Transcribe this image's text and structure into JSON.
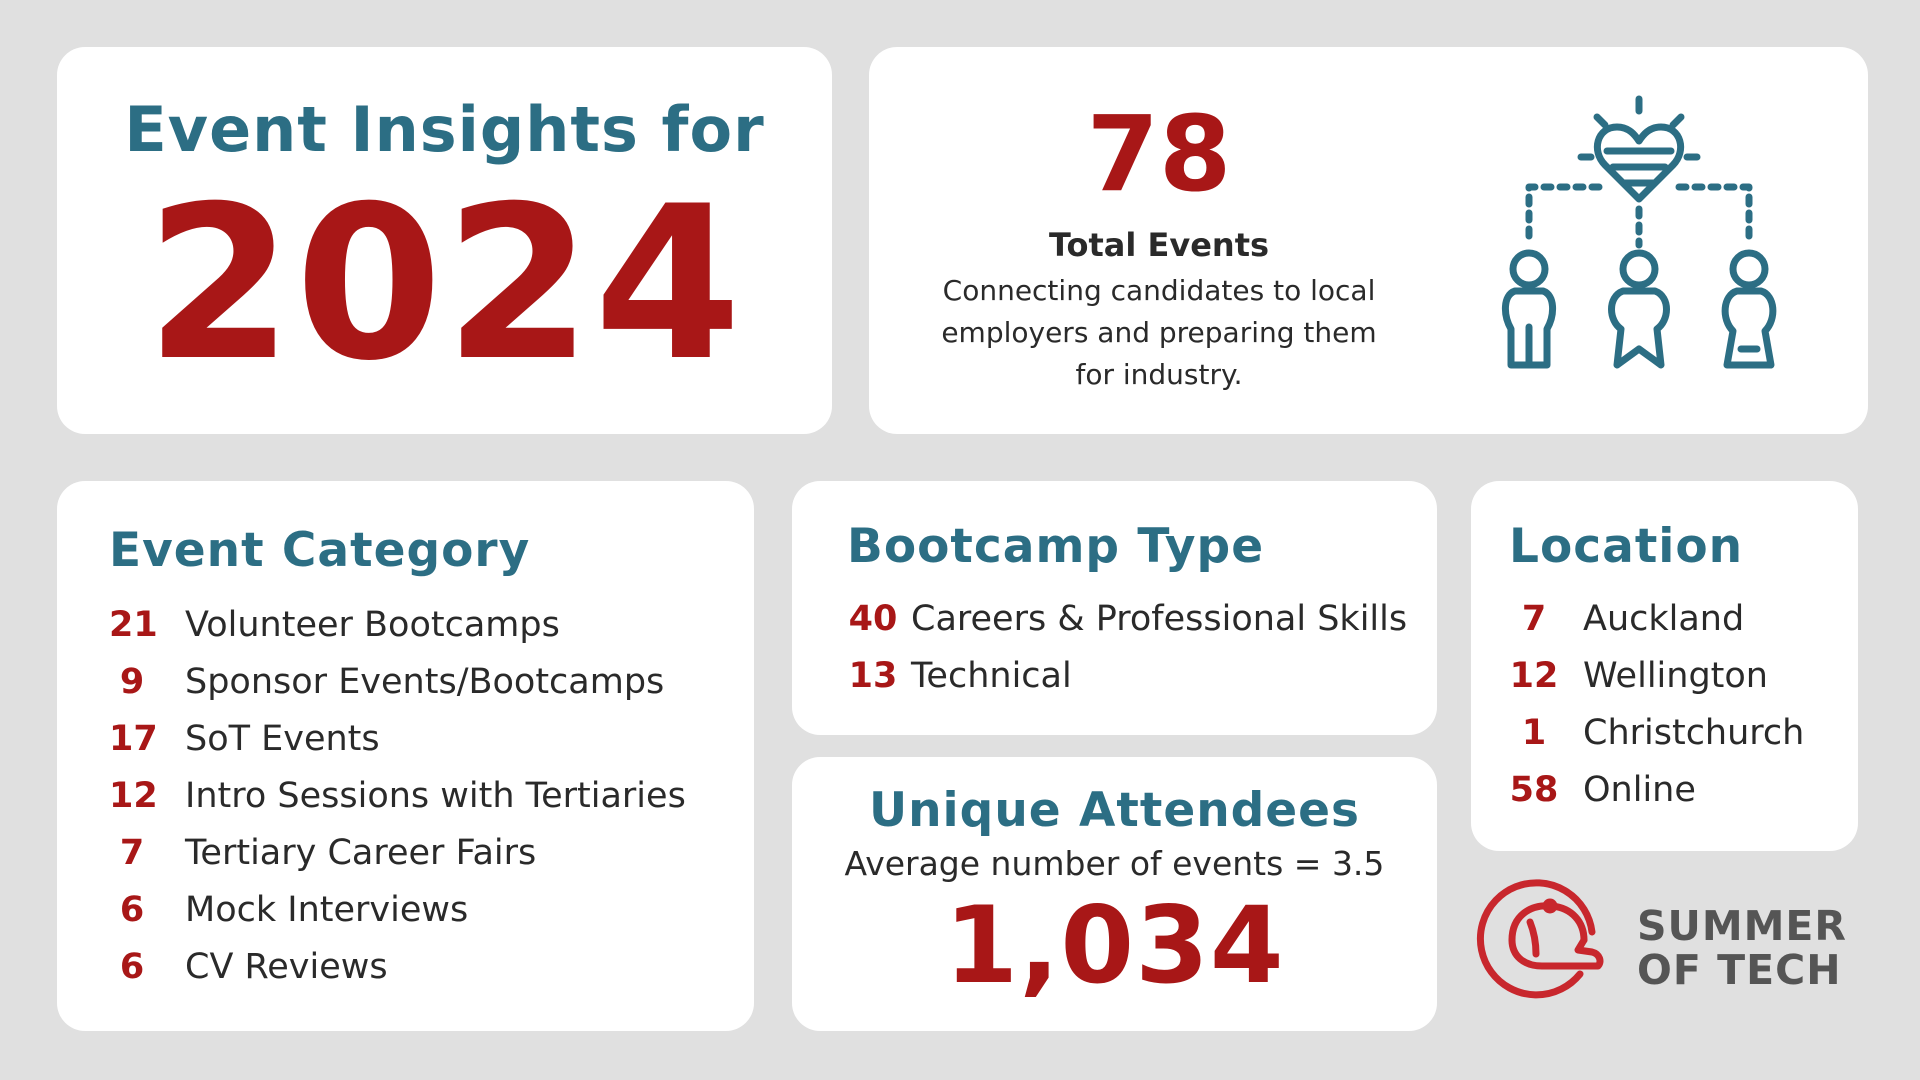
{
  "title": {
    "line": "Event Insights for",
    "year": "2024"
  },
  "total": {
    "number": "78",
    "label": "Total Events",
    "description": "Connecting candidates to local employers and preparing them for industry.",
    "icon": "people-connection-icon"
  },
  "event_category": {
    "heading": "Event Category",
    "items": [
      {
        "count": "21",
        "label": "Volunteer Bootcamps"
      },
      {
        "count": "9",
        "label": "Sponsor Events/Bootcamps"
      },
      {
        "count": "17",
        "label": "SoT Events"
      },
      {
        "count": "12",
        "label": "Intro Sessions with Tertiaries"
      },
      {
        "count": "7",
        "label": "Tertiary Career Fairs"
      },
      {
        "count": "6",
        "label": "Mock Interviews"
      },
      {
        "count": "6",
        "label": "CV Reviews"
      }
    ]
  },
  "bootcamp_type": {
    "heading": "Bootcamp Type",
    "items": [
      {
        "count": "40",
        "label": "Careers & Professional Skills"
      },
      {
        "count": "13",
        "label": "Technical"
      }
    ]
  },
  "location": {
    "heading": "Location",
    "items": [
      {
        "count": "7",
        "label": "Auckland"
      },
      {
        "count": "12",
        "label": "Wellington"
      },
      {
        "count": "1",
        "label": "Christchurch"
      },
      {
        "count": "58",
        "label": "Online"
      }
    ]
  },
  "attendees": {
    "heading": "Unique Attendees",
    "average": "Average number of events = 3.5",
    "number": "1,034"
  },
  "logo": {
    "line1": "SUMMER",
    "line2": "OF TECH",
    "icon": "cap-logo-icon"
  },
  "colors": {
    "background": "#e0e0e0",
    "teal": "#2c6e84",
    "red": "#a81717",
    "text": "#2a2a2a"
  }
}
